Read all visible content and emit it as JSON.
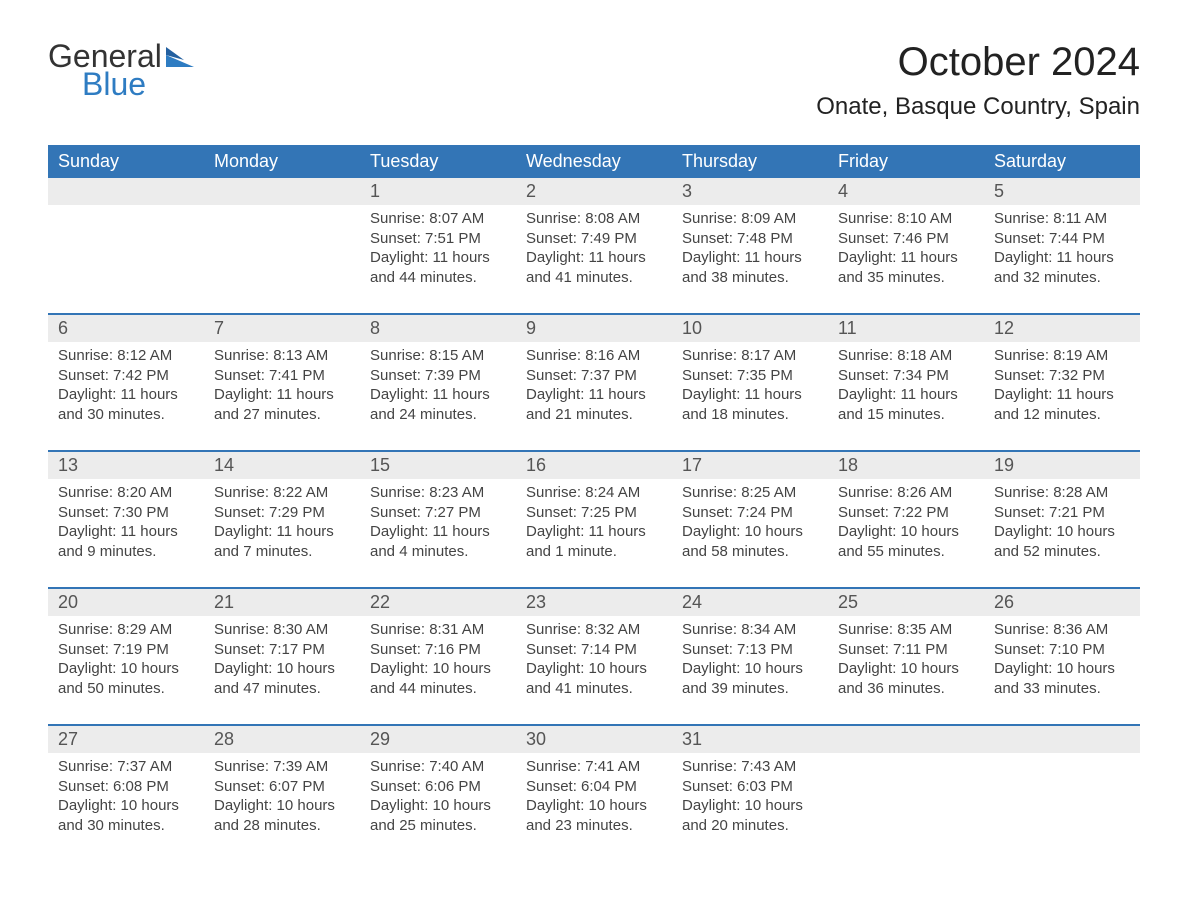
{
  "logo": {
    "line1": "General",
    "line2": "Blue"
  },
  "title": "October 2024",
  "location": "Onate, Basque Country, Spain",
  "colors": {
    "header_bg": "#3375b6",
    "header_text": "#ffffff",
    "daynum_bg": "#ececec",
    "rule": "#3375b6",
    "body_text": "#444444",
    "title_text": "#222222",
    "logo_blue": "#2e7cc2",
    "page_bg": "#ffffff"
  },
  "typography": {
    "family": "Arial",
    "title_size_pt": 30,
    "location_size_pt": 18,
    "weekday_size_pt": 14,
    "daynum_size_pt": 14,
    "body_size_pt": 11
  },
  "layout": {
    "cols": 7,
    "rows": 5,
    "start_weekday": "Sunday"
  },
  "weekday_labels": [
    "Sunday",
    "Monday",
    "Tuesday",
    "Wednesday",
    "Thursday",
    "Friday",
    "Saturday"
  ],
  "weeks": [
    {
      "days": [
        {
          "date": null
        },
        {
          "date": null
        },
        {
          "date": 1,
          "sunrise": "8:07 AM",
          "sunset": "7:51 PM",
          "daylight_h": 11,
          "daylight_m": 44
        },
        {
          "date": 2,
          "sunrise": "8:08 AM",
          "sunset": "7:49 PM",
          "daylight_h": 11,
          "daylight_m": 41
        },
        {
          "date": 3,
          "sunrise": "8:09 AM",
          "sunset": "7:48 PM",
          "daylight_h": 11,
          "daylight_m": 38
        },
        {
          "date": 4,
          "sunrise": "8:10 AM",
          "sunset": "7:46 PM",
          "daylight_h": 11,
          "daylight_m": 35
        },
        {
          "date": 5,
          "sunrise": "8:11 AM",
          "sunset": "7:44 PM",
          "daylight_h": 11,
          "daylight_m": 32
        }
      ]
    },
    {
      "days": [
        {
          "date": 6,
          "sunrise": "8:12 AM",
          "sunset": "7:42 PM",
          "daylight_h": 11,
          "daylight_m": 30
        },
        {
          "date": 7,
          "sunrise": "8:13 AM",
          "sunset": "7:41 PM",
          "daylight_h": 11,
          "daylight_m": 27
        },
        {
          "date": 8,
          "sunrise": "8:15 AM",
          "sunset": "7:39 PM",
          "daylight_h": 11,
          "daylight_m": 24
        },
        {
          "date": 9,
          "sunrise": "8:16 AM",
          "sunset": "7:37 PM",
          "daylight_h": 11,
          "daylight_m": 21
        },
        {
          "date": 10,
          "sunrise": "8:17 AM",
          "sunset": "7:35 PM",
          "daylight_h": 11,
          "daylight_m": 18
        },
        {
          "date": 11,
          "sunrise": "8:18 AM",
          "sunset": "7:34 PM",
          "daylight_h": 11,
          "daylight_m": 15
        },
        {
          "date": 12,
          "sunrise": "8:19 AM",
          "sunset": "7:32 PM",
          "daylight_h": 11,
          "daylight_m": 12
        }
      ]
    },
    {
      "days": [
        {
          "date": 13,
          "sunrise": "8:20 AM",
          "sunset": "7:30 PM",
          "daylight_h": 11,
          "daylight_m": 9
        },
        {
          "date": 14,
          "sunrise": "8:22 AM",
          "sunset": "7:29 PM",
          "daylight_h": 11,
          "daylight_m": 7
        },
        {
          "date": 15,
          "sunrise": "8:23 AM",
          "sunset": "7:27 PM",
          "daylight_h": 11,
          "daylight_m": 4
        },
        {
          "date": 16,
          "sunrise": "8:24 AM",
          "sunset": "7:25 PM",
          "daylight_h": 11,
          "daylight_m": 1
        },
        {
          "date": 17,
          "sunrise": "8:25 AM",
          "sunset": "7:24 PM",
          "daylight_h": 10,
          "daylight_m": 58
        },
        {
          "date": 18,
          "sunrise": "8:26 AM",
          "sunset": "7:22 PM",
          "daylight_h": 10,
          "daylight_m": 55
        },
        {
          "date": 19,
          "sunrise": "8:28 AM",
          "sunset": "7:21 PM",
          "daylight_h": 10,
          "daylight_m": 52
        }
      ]
    },
    {
      "days": [
        {
          "date": 20,
          "sunrise": "8:29 AM",
          "sunset": "7:19 PM",
          "daylight_h": 10,
          "daylight_m": 50
        },
        {
          "date": 21,
          "sunrise": "8:30 AM",
          "sunset": "7:17 PM",
          "daylight_h": 10,
          "daylight_m": 47
        },
        {
          "date": 22,
          "sunrise": "8:31 AM",
          "sunset": "7:16 PM",
          "daylight_h": 10,
          "daylight_m": 44
        },
        {
          "date": 23,
          "sunrise": "8:32 AM",
          "sunset": "7:14 PM",
          "daylight_h": 10,
          "daylight_m": 41
        },
        {
          "date": 24,
          "sunrise": "8:34 AM",
          "sunset": "7:13 PM",
          "daylight_h": 10,
          "daylight_m": 39
        },
        {
          "date": 25,
          "sunrise": "8:35 AM",
          "sunset": "7:11 PM",
          "daylight_h": 10,
          "daylight_m": 36
        },
        {
          "date": 26,
          "sunrise": "8:36 AM",
          "sunset": "7:10 PM",
          "daylight_h": 10,
          "daylight_m": 33
        }
      ]
    },
    {
      "days": [
        {
          "date": 27,
          "sunrise": "7:37 AM",
          "sunset": "6:08 PM",
          "daylight_h": 10,
          "daylight_m": 30
        },
        {
          "date": 28,
          "sunrise": "7:39 AM",
          "sunset": "6:07 PM",
          "daylight_h": 10,
          "daylight_m": 28
        },
        {
          "date": 29,
          "sunrise": "7:40 AM",
          "sunset": "6:06 PM",
          "daylight_h": 10,
          "daylight_m": 25
        },
        {
          "date": 30,
          "sunrise": "7:41 AM",
          "sunset": "6:04 PM",
          "daylight_h": 10,
          "daylight_m": 23
        },
        {
          "date": 31,
          "sunrise": "7:43 AM",
          "sunset": "6:03 PM",
          "daylight_h": 10,
          "daylight_m": 20
        },
        {
          "date": null
        },
        {
          "date": null
        }
      ]
    }
  ],
  "labels": {
    "sunrise_prefix": "Sunrise: ",
    "sunset_prefix": "Sunset: ",
    "daylight_prefix": "Daylight: ",
    "hours_word": " hours",
    "and_word": "and ",
    "minute_word": " minute.",
    "minutes_word": " minutes."
  }
}
